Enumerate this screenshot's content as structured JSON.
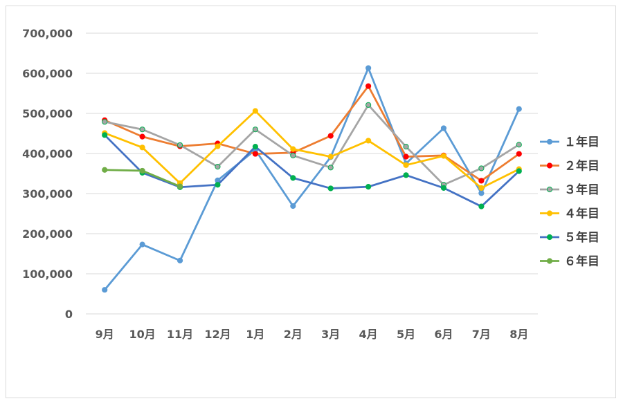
{
  "chart_data": {
    "type": "line",
    "title": "",
    "xlabel": "",
    "ylabel": "",
    "categories": [
      "9月",
      "10月",
      "11月",
      "12月",
      "1月",
      "2月",
      "3月",
      "4月",
      "5月",
      "6月",
      "7月",
      "8月"
    ],
    "ylim": [
      0,
      700000
    ],
    "yticks": [
      0,
      100000,
      200000,
      300000,
      400000,
      500000,
      600000,
      700000
    ],
    "ytick_labels": [
      "0",
      "100,000",
      "200,000",
      "300,000",
      "400,000",
      "500,000",
      "600,000",
      "700,000"
    ],
    "grid": true,
    "legend_position": "right",
    "series": [
      {
        "name": "１年目",
        "line_color": "#5B9BD5",
        "marker_fill": "#5B9BD5",
        "marker_stroke": "#5B9BD5",
        "values": [
          60000,
          173000,
          133000,
          333000,
          409000,
          269000,
          391000,
          613000,
          375000,
          463000,
          301000,
          511000
        ]
      },
      {
        "name": "２年目",
        "line_color": "#ED7D31",
        "marker_fill": "#FF0000",
        "marker_stroke": "#FF0000",
        "values": [
          483000,
          442000,
          418000,
          425000,
          399000,
          402000,
          444000,
          568000,
          392000,
          395000,
          332000,
          399000
        ]
      },
      {
        "name": "３年目",
        "line_color": "#A5A5A5",
        "marker_fill": "#A5A5A5",
        "marker_stroke": "#00B050",
        "values": [
          479000,
          460000,
          421000,
          367000,
          460000,
          395000,
          365000,
          521000,
          417000,
          322000,
          363000,
          422000
        ]
      },
      {
        "name": "４年目",
        "line_color": "#FFC000",
        "marker_fill": "#FFC000",
        "marker_stroke": "#FFC000",
        "values": [
          451000,
          415000,
          326000,
          418000,
          506000,
          411000,
          392000,
          432000,
          371000,
          394000,
          314000,
          361000
        ]
      },
      {
        "name": "５年目",
        "line_color": "#4472C4",
        "marker_fill": "#00B050",
        "marker_stroke": "#00B050",
        "values": [
          446000,
          352000,
          316000,
          322000,
          417000,
          339000,
          313000,
          317000,
          346000,
          314000,
          268000,
          356000
        ]
      },
      {
        "name": "６年目",
        "line_color": "#70AD47",
        "marker_fill": "#70AD47",
        "marker_stroke": "#70AD47",
        "values": [
          359000,
          357000,
          318000,
          null,
          null,
          null,
          null,
          null,
          null,
          null,
          null,
          null
        ]
      }
    ]
  }
}
